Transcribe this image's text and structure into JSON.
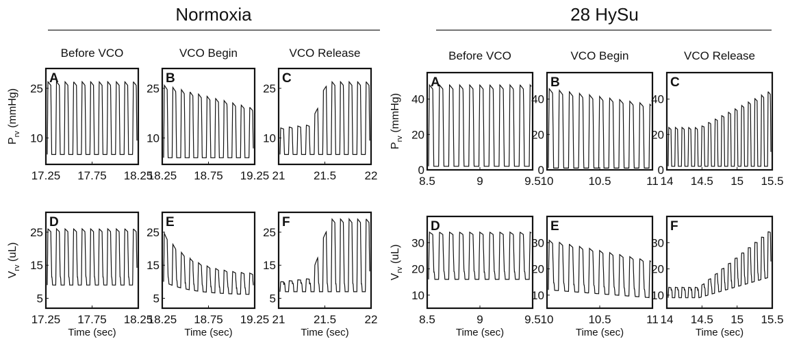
{
  "groups": [
    {
      "title": "Normoxia"
    },
    {
      "title": "28 HySu"
    }
  ],
  "chart_data": [
    {
      "type": "line",
      "group": "Normoxia",
      "panel": "A",
      "column_title": "Before VCO",
      "ylabel": "P",
      "ylabel_sub": "rv",
      "ylabel_unit": "(mmHg)",
      "xlabel": "",
      "xlim": [
        17.25,
        18.25
      ],
      "ylim": [
        2,
        31
      ],
      "xticks": [
        "17.25",
        "17.75",
        "18.25"
      ],
      "yticks": [
        "10",
        "25"
      ],
      "wave": {
        "freq": 10.5,
        "min": 5,
        "peak": [
          27,
          27
        ],
        "dicrotic": 0
      }
    },
    {
      "type": "line",
      "group": "Normoxia",
      "panel": "B",
      "column_title": "VCO Begin",
      "ylabel": "",
      "xlabel": "",
      "xlim": [
        18.25,
        19.25
      ],
      "ylim": [
        2,
        31
      ],
      "xticks": [
        "18.25",
        "18.75",
        "19.25"
      ],
      "yticks": [
        "10",
        "25"
      ],
      "wave": {
        "freq": 10.5,
        "min": 4,
        "peak": [
          26,
          19
        ],
        "dicrotic": 0
      }
    },
    {
      "type": "line",
      "group": "Normoxia",
      "panel": "C",
      "column_title": "VCO Release",
      "ylabel": "",
      "xlabel": "",
      "xlim": [
        21,
        22
      ],
      "ylim": [
        2,
        31
      ],
      "xticks": [
        "21",
        "21.5",
        "22"
      ],
      "yticks": [
        "10",
        "25"
      ],
      "wave": {
        "freq": 10.5,
        "min": 5,
        "peak": [
          13,
          27
        ],
        "dicrotic": 0,
        "step": [
          0.33,
          0.52
        ]
      }
    },
    {
      "type": "line",
      "group": "Normoxia",
      "panel": "D",
      "column_title": "",
      "ylabel": "V",
      "ylabel_sub": "rv",
      "ylabel_unit": "(uL)",
      "xlabel": "Time (sec)",
      "xlim": [
        17.25,
        18.25
      ],
      "ylim": [
        2,
        31
      ],
      "xticks": [
        "17.25",
        "17.75",
        "18.25"
      ],
      "yticks": [
        "5",
        "15",
        "25"
      ],
      "wave": {
        "freq": 10.5,
        "min": 9,
        "peak": [
          26,
          26
        ],
        "dicrotic": 2.5
      }
    },
    {
      "type": "line",
      "group": "Normoxia",
      "panel": "E",
      "column_title": "",
      "ylabel": "",
      "xlabel": "Time (sec)",
      "xlim": [
        18.25,
        19.25
      ],
      "ylim": [
        2,
        31
      ],
      "xticks": [
        "18.25",
        "18.75",
        "19.25"
      ],
      "yticks": [
        "5",
        "15",
        "25"
      ],
      "wave": {
        "freq": 10.5,
        "min": 6,
        "peak": [
          25,
          12
        ],
        "dicrotic": 2,
        "decay": true
      }
    },
    {
      "type": "line",
      "group": "Normoxia",
      "panel": "F",
      "column_title": "",
      "ylabel": "",
      "xlabel": "Time (sec)",
      "xlim": [
        21,
        22
      ],
      "ylim": [
        2,
        31
      ],
      "xticks": [
        "21",
        "21.5",
        "22"
      ],
      "yticks": [
        "5",
        "15",
        "25"
      ],
      "wave": {
        "freq": 10.5,
        "min": 7,
        "peak": [
          10,
          29
        ],
        "dicrotic": 2.5,
        "step": [
          0.33,
          0.55
        ]
      }
    },
    {
      "type": "line",
      "group": "28 HySu",
      "panel": "A",
      "column_title": "Before VCO",
      "ylabel": "P",
      "ylabel_sub": "rv",
      "ylabel_unit": "(mmHg)",
      "xlabel": "",
      "xlim": [
        8.5,
        9.5
      ],
      "ylim": [
        0,
        55
      ],
      "xticks": [
        "8.5",
        "9",
        "9.5"
      ],
      "yticks": [
        "0",
        "20",
        "40"
      ],
      "wave": {
        "freq": 10.2,
        "min": 2,
        "peak": [
          48,
          48
        ],
        "dicrotic": 0
      }
    },
    {
      "type": "line",
      "group": "28 HySu",
      "panel": "B",
      "column_title": "VCO Begin",
      "ylabel": "",
      "xlabel": "",
      "xlim": [
        10,
        11
      ],
      "ylim": [
        0,
        55
      ],
      "xticks": [
        "10",
        "10.5",
        "11"
      ],
      "yticks": [
        "0",
        "20",
        "40"
      ],
      "wave": {
        "freq": 10.2,
        "min": 1,
        "peak": [
          46,
          37
        ],
        "dicrotic": 0
      }
    },
    {
      "type": "line",
      "group": "28 HySu",
      "panel": "C",
      "column_title": "VCO Release",
      "ylabel": "",
      "xlabel": "",
      "xlim": [
        14,
        15.5
      ],
      "ylim": [
        0,
        55
      ],
      "xticks": [
        "14",
        "14.5",
        "15",
        "15.5"
      ],
      "yticks": [
        "0",
        "20",
        "40"
      ],
      "wave": {
        "freq": 15.5,
        "min": 2,
        "peak": [
          24,
          45
        ],
        "dicrotic": 0,
        "ramp": true
      }
    },
    {
      "type": "line",
      "group": "28 HySu",
      "panel": "D",
      "column_title": "",
      "ylabel": "V",
      "ylabel_sub": "rv",
      "ylabel_unit": "(uL)",
      "xlabel": "Time (sec)",
      "xlim": [
        8.5,
        9.5
      ],
      "ylim": [
        5,
        40
      ],
      "xticks": [
        "8.5",
        "9",
        "9.5"
      ],
      "yticks": [
        "10",
        "20",
        "30"
      ],
      "wave": {
        "freq": 10.2,
        "min": 16,
        "peak": [
          34,
          34
        ],
        "dicrotic": 3
      }
    },
    {
      "type": "line",
      "group": "28 HySu",
      "panel": "E",
      "column_title": "",
      "ylabel": "",
      "xlabel": "Time (sec)",
      "xlim": [
        10,
        11
      ],
      "ylim": [
        5,
        40
      ],
      "xticks": [
        "10",
        "10.5",
        "11"
      ],
      "yticks": [
        "10",
        "20",
        "30"
      ],
      "wave": {
        "freq": 10.2,
        "min": 12,
        "peak": [
          31,
          23
        ],
        "dicrotic": 3,
        "minEnd": 9
      }
    },
    {
      "type": "line",
      "group": "28 HySu",
      "panel": "F",
      "column_title": "",
      "ylabel": "",
      "xlabel": "Time (sec)",
      "xlim": [
        14,
        15.5
      ],
      "ylim": [
        5,
        40
      ],
      "xticks": [
        "14",
        "14.5",
        "15",
        "15.5"
      ],
      "yticks": [
        "10",
        "20",
        "30"
      ],
      "wave": {
        "freq": 15.5,
        "min": 9,
        "peak": [
          13,
          35
        ],
        "dicrotic": 3,
        "ramp": true,
        "minEnd": 17
      }
    }
  ]
}
